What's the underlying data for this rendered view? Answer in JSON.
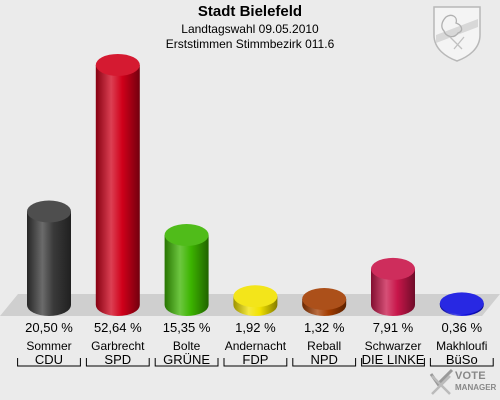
{
  "header": {
    "title": "Stadt Bielefeld",
    "subtitle_line1": "Landtagswahl 09.05.2010",
    "subtitle_line2": "Erststimmen Stimmbezirk 011.6"
  },
  "branding": {
    "watermark_line1": "VOTE",
    "watermark_line2": "MANAGER"
  },
  "chart_data": {
    "type": "bar",
    "style": "3d-cylinder",
    "grid": false,
    "legend": "none",
    "ylim": [
      0,
      55
    ],
    "categories": [
      "CDU",
      "SPD",
      "GRÜNE",
      "FDP",
      "NPD",
      "DIE LINKE",
      "BüSo"
    ],
    "candidates": [
      "Sommer",
      "Garbrecht",
      "Bolte",
      "Andernacht",
      "Reball",
      "Schwarzer",
      "Makhloufi"
    ],
    "values": [
      20.5,
      52.64,
      15.35,
      1.92,
      1.32,
      7.91,
      0.36
    ],
    "value_labels": [
      "20,50 %",
      "52,64 %",
      "15,35 %",
      "1,92 %",
      "1,32 %",
      "7,91 %",
      "0,36 %"
    ],
    "colors": [
      "#3a3a3a",
      "#d0001a",
      "#3cb400",
      "#f2e200",
      "#a33c00",
      "#c8164a",
      "#1010e0"
    ]
  }
}
